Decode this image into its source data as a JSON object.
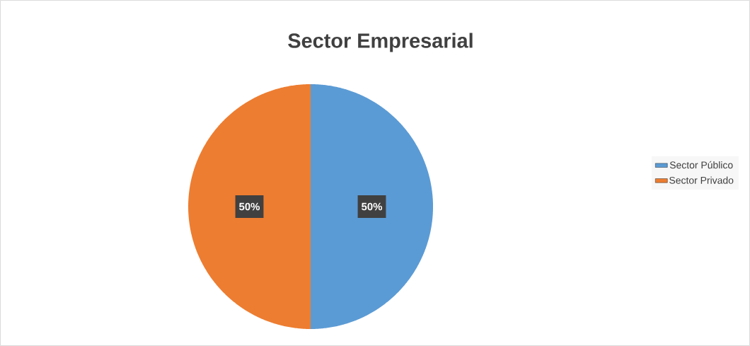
{
  "chart_data": {
    "type": "pie",
    "title": "Sector Empresarial",
    "categories": [
      "Sector Público",
      "Sector Privado"
    ],
    "values": [
      50,
      50
    ],
    "colors": [
      "#5b9bd5",
      "#ed7d31"
    ],
    "value_labels": [
      "50%",
      "50%"
    ],
    "legend": "right"
  }
}
